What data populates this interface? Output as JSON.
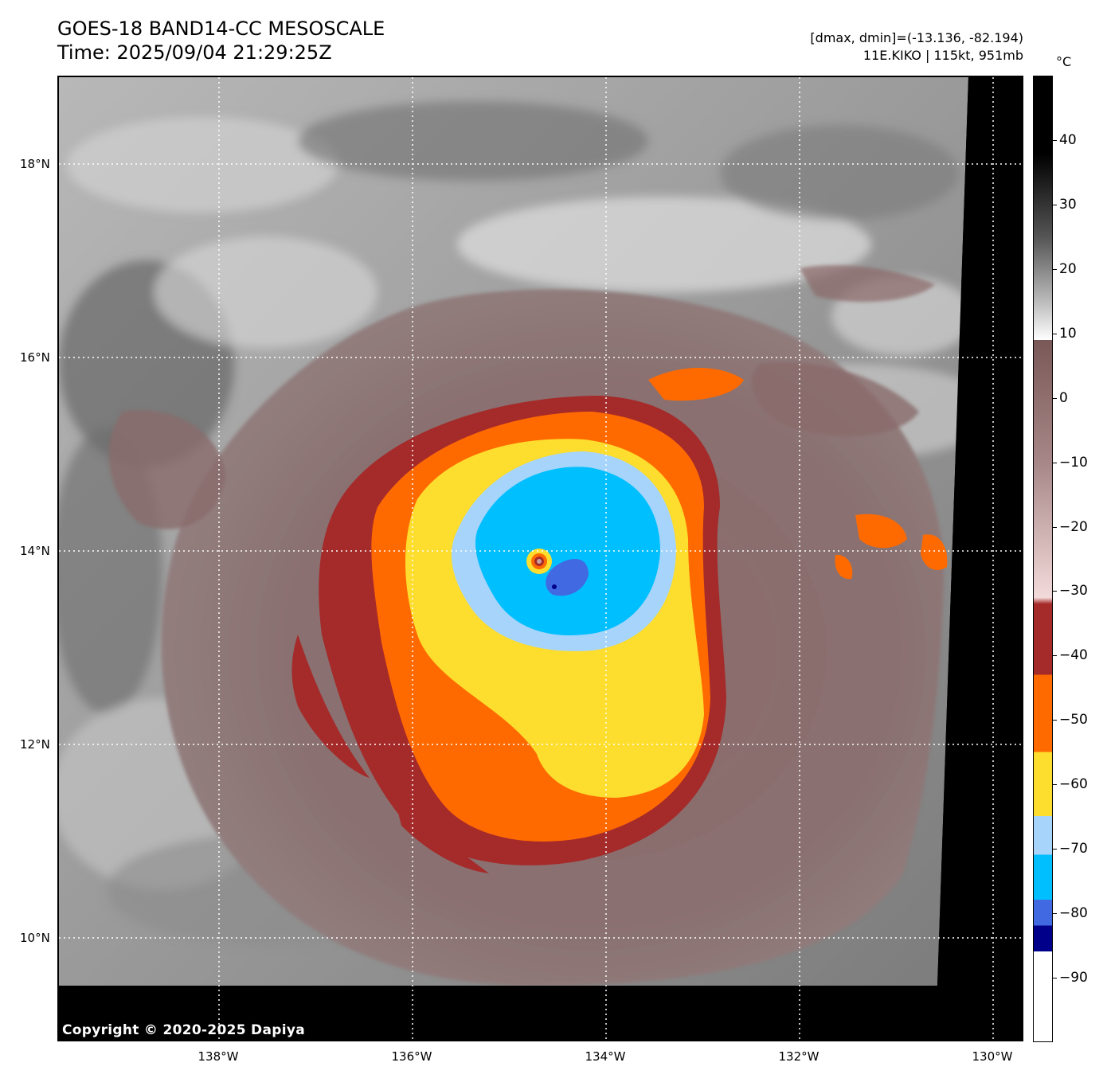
{
  "header": {
    "title_line1": "GOES-18 BAND14-CC MESOSCALE",
    "title_line2": "Time: 2025/09/04 21:29:25Z",
    "meta_line1": "[dmax, dmin]=(-13.136, -82.194)",
    "meta_line2": "11E.KIKO | 115kt, 951mb"
  },
  "map": {
    "lat_labels": [
      "18°N",
      "16°N",
      "14°N",
      "12°N",
      "10°N"
    ],
    "lon_labels": [
      "138°W",
      "136°W",
      "134°W",
      "132°W",
      "130°W"
    ],
    "storm_name": "11E.KIKO",
    "storm_center": {
      "lat": 13.85,
      "lon": 134.7
    },
    "copyright": "Copyright © 2020-2025 Dapiya"
  },
  "colorbar": {
    "unit": "°C",
    "tick_labels": [
      "40",
      "30",
      "20",
      "10",
      "0",
      "−10",
      "−20",
      "−30",
      "−40",
      "−50",
      "−60",
      "−70",
      "−80",
      "−90"
    ],
    "tick_values": [
      40,
      30,
      20,
      10,
      0,
      -10,
      -20,
      -30,
      -40,
      -50,
      -60,
      -70,
      -80,
      -90
    ],
    "range": [
      -100,
      50
    ],
    "bands": [
      {
        "from": 50,
        "to": 9,
        "color": "grayscale"
      },
      {
        "from": 9,
        "to": -32,
        "color": "#7a5858"
      },
      {
        "from": -32,
        "to": -43,
        "color": "#a52a2a"
      },
      {
        "from": -43,
        "to": -55,
        "color": "#ff6a00"
      },
      {
        "from": -55,
        "to": -65,
        "color": "#fddd2e"
      },
      {
        "from": -65,
        "to": -71,
        "color": "#a6d4fa"
      },
      {
        "from": -71,
        "to": -78,
        "color": "#00bfff"
      },
      {
        "from": -78,
        "to": -82,
        "color": "#4169e1"
      },
      {
        "from": -82,
        "to": -86,
        "color": "#00008b"
      },
      {
        "from": -86,
        "to": -100,
        "color": "#ffffff"
      }
    ]
  }
}
